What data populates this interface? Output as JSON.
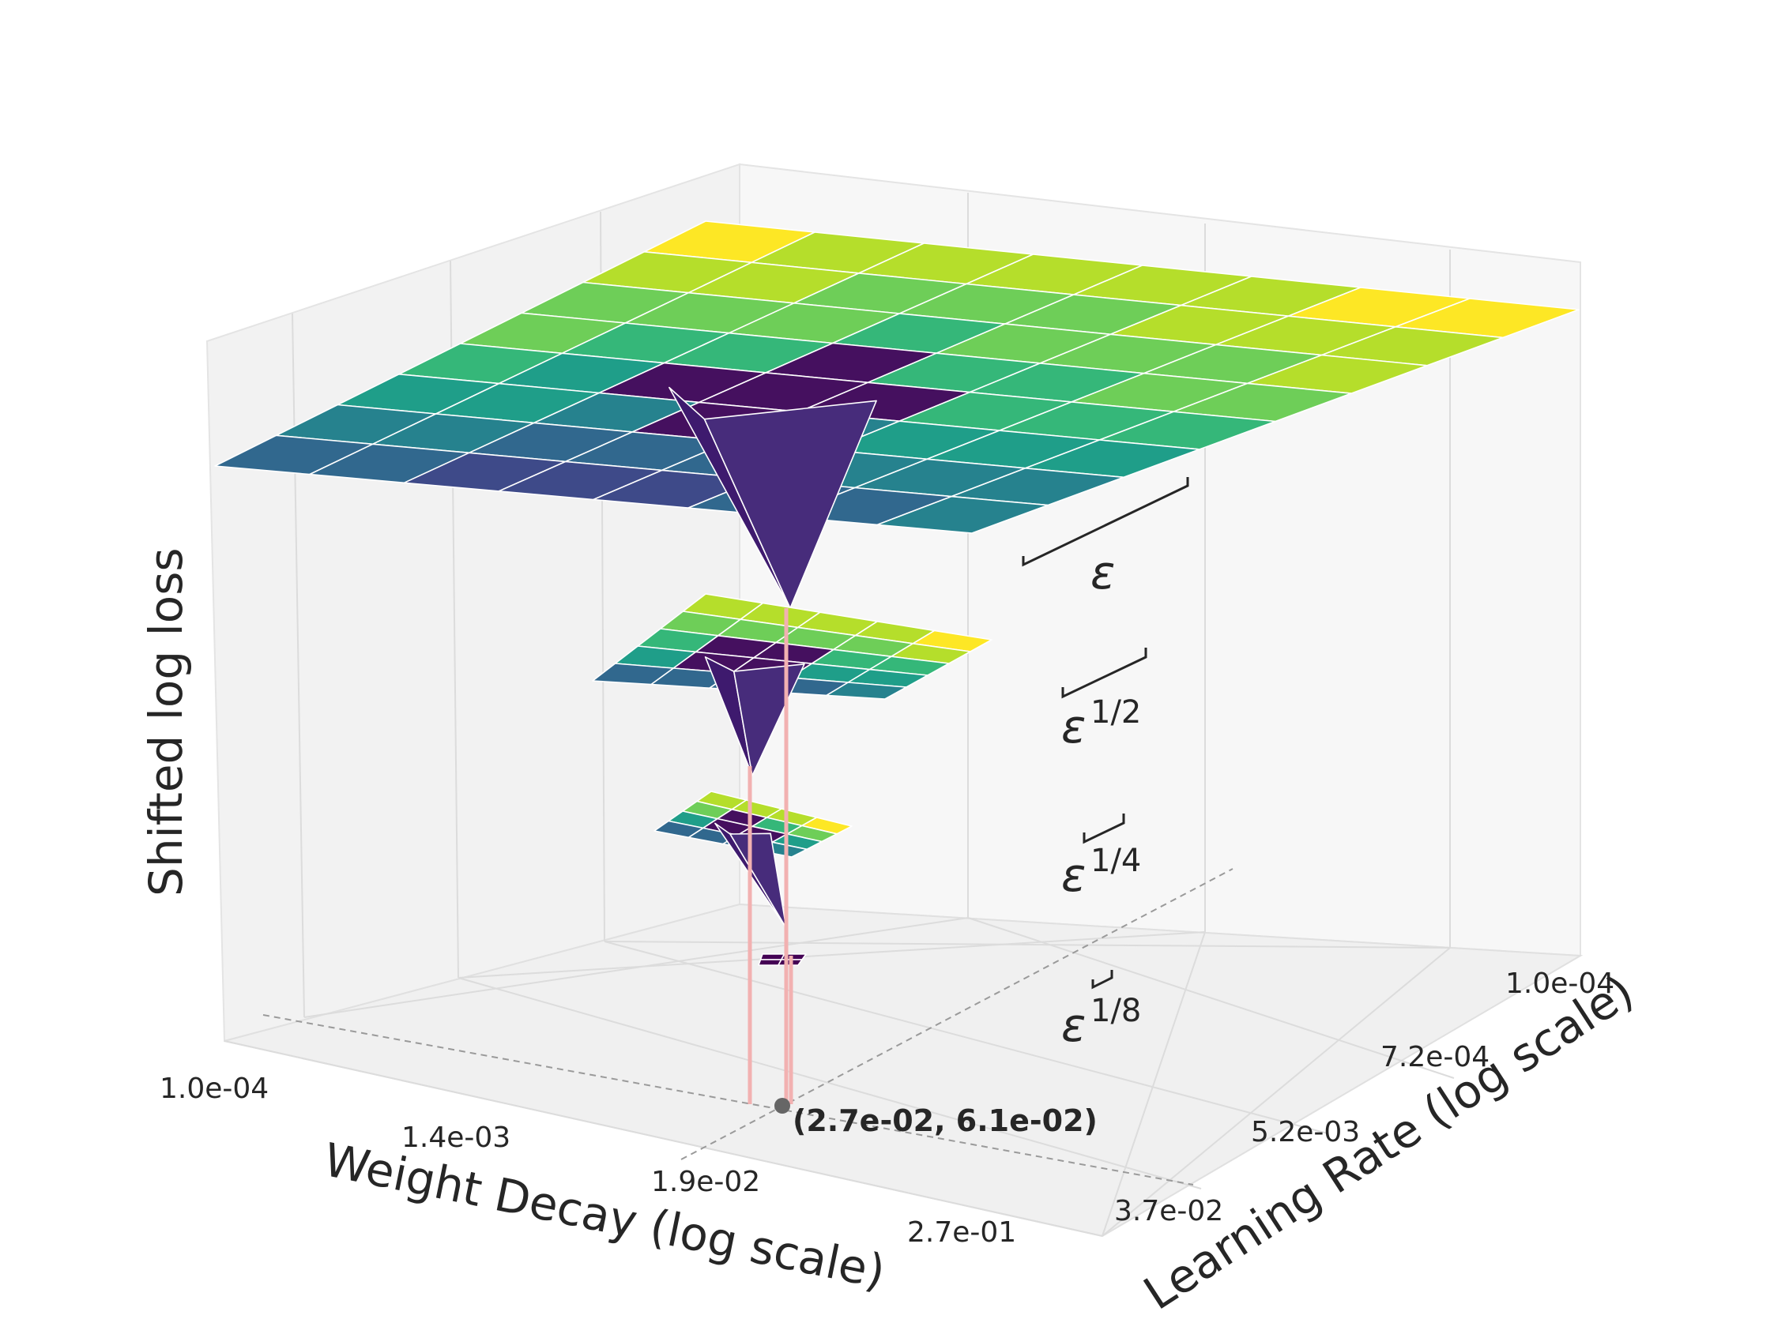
{
  "chart_data": {
    "type": "surface3d",
    "zlabel": "Shifted log loss",
    "xlabel": "Weight Decay (log scale)",
    "ylabel": "Learning Rate (log scale)",
    "x_ticks": [
      "1.0e-04",
      "1.4e-03",
      "1.9e-02",
      "2.7e-01"
    ],
    "y_ticks": [
      "1.0e-04",
      "7.2e-04",
      "5.2e-03",
      "3.7e-02"
    ],
    "x_scale": "log",
    "y_scale": "log",
    "x_range": [
      0.0001,
      0.27
    ],
    "y_range": [
      0.0001,
      0.037
    ],
    "colormap": "viridis",
    "surfaces": [
      {
        "label_base": "ε",
        "label_exp": ""
      },
      {
        "label_base": "ε",
        "label_exp": "1/2"
      },
      {
        "label_base": "ε",
        "label_exp": "1/4"
      },
      {
        "label_base": "ε",
        "label_exp": "1/8"
      }
    ],
    "optimum": {
      "x": 0.027,
      "y": 0.061,
      "label": "(2.7e-02, 6.1e-02)"
    },
    "colors": {
      "pane": "#f4f4f4",
      "grid": "#dedede",
      "marker": "#555555",
      "drop_line": "#f4b4b4",
      "bracket": "#262626"
    }
  }
}
